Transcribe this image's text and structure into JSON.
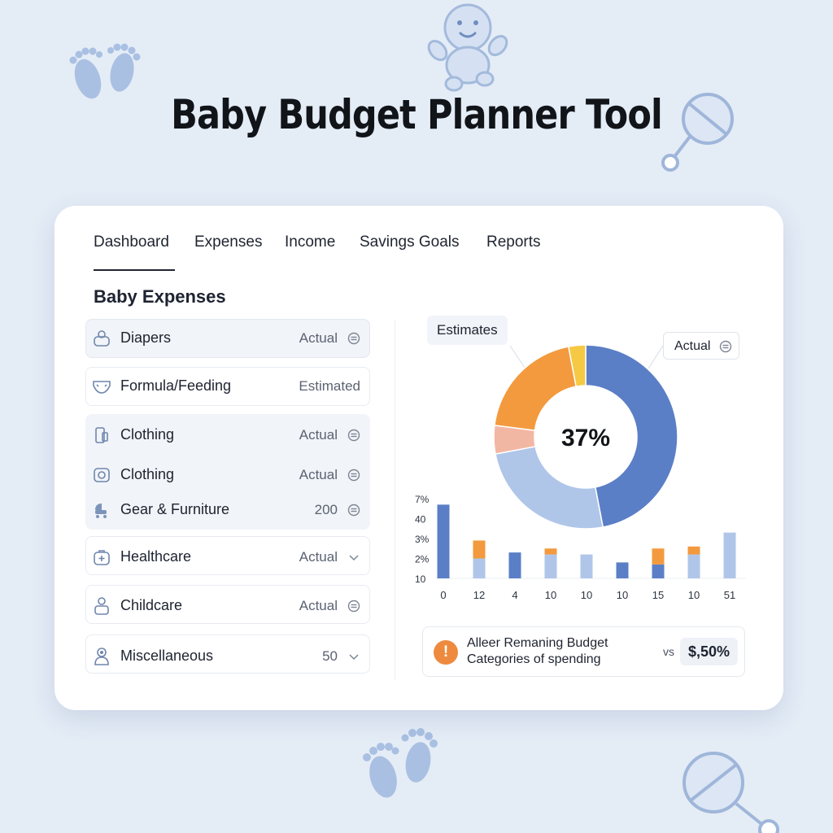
{
  "title": "Baby Budget Planner Tool",
  "tabs": [
    {
      "label": "Dashboard",
      "active": true
    },
    {
      "label": "Expenses"
    },
    {
      "label": "Income"
    },
    {
      "label": "Savings Goals"
    },
    {
      "label": "Reports"
    }
  ],
  "expenses": {
    "heading": "Baby Expenses",
    "items": [
      {
        "label": "Diapers",
        "status": "Actual",
        "control": "toggle-icon",
        "icon": "diaper-bag-icon"
      },
      {
        "label": "Formula/Feeding",
        "status": "Estimated",
        "icon": "diaper-icon"
      },
      {
        "label": "Clothing",
        "status": "Actual",
        "control": "toggle-icon",
        "icon": "clothing-icon"
      },
      {
        "label": "Clothing",
        "status": "Actual",
        "control": "toggle-icon",
        "icon": "onesie-icon"
      },
      {
        "label": "Gear & Furniture",
        "status": "200",
        "control": "toggle-icon",
        "icon": "stroller-icon"
      },
      {
        "label": "Healthcare",
        "status": "Actual",
        "control": "chevron-down-icon",
        "icon": "medical-kit-icon"
      },
      {
        "label": "Childcare",
        "status": "Actual",
        "control": "toggle-icon",
        "icon": "childcare-icon"
      },
      {
        "label": "Miscellaneous",
        "status": "50",
        "control": "chevron-down-icon",
        "icon": "baby-icon"
      }
    ]
  },
  "estimates_label": "Estimates",
  "actual_button": "Actual",
  "donut": {
    "center_label": "37%",
    "colors": [
      "#5b7fc6",
      "#afc6e9",
      "#f2b7a3",
      "#f39a3e",
      "#f6c944"
    ]
  },
  "chart_data": [
    {
      "type": "pie",
      "title": "",
      "center_label": "37%",
      "slices": [
        0.47,
        0.25,
        0.05,
        0.2,
        0.03
      ],
      "colors": [
        "#5b7fc6",
        "#afc6e9",
        "#f2b7a3",
        "#f39a3e",
        "#f6c944"
      ]
    },
    {
      "type": "bar",
      "title": "",
      "categories": [
        "0",
        "12",
        "4",
        "10",
        "10",
        "10",
        "15",
        "10",
        "51"
      ],
      "y_tick_labels": [
        "7%",
        "40",
        "3%",
        "2%",
        "10"
      ],
      "ylim": [
        0,
        4
      ],
      "series": [
        {
          "values": [
            3.7,
            1.0,
            1.3,
            1.2,
            1.2,
            0.8,
            0.7,
            1.2,
            2.3
          ],
          "color": "#5b7fc6"
        },
        {
          "values": [
            0,
            0.9,
            0,
            0.3,
            0,
            0,
            0.8,
            0.4,
            0
          ],
          "color": "#f39a3e"
        }
      ],
      "segment_colors": [
        "#5b7fc6",
        "#afc6e9",
        "#5b7fc6",
        "#afc6e9",
        "#afc6e9",
        "#5b7fc6",
        "#5b7fc6",
        "#afc6e9",
        "#afc6e9"
      ],
      "grid": false,
      "legend": "none"
    }
  ],
  "alert": {
    "icon": "exclamation-icon",
    "line1": "Alleer Remaning Budget",
    "line2": "Categories of spending",
    "vs": "vs",
    "value": "$,50%"
  }
}
